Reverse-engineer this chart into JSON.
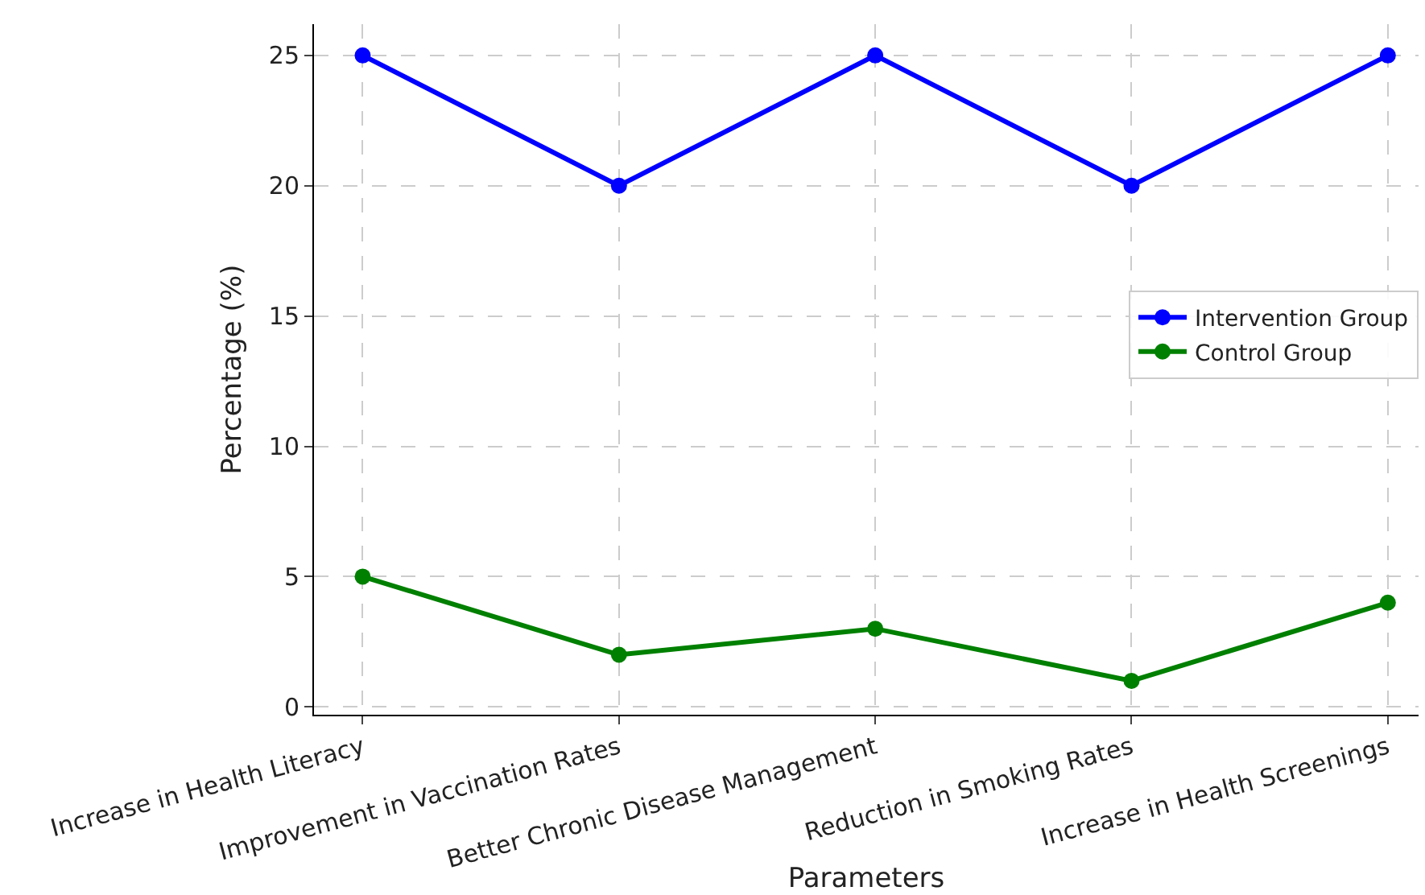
{
  "chart_data": {
    "type": "line",
    "xlabel": "Parameters",
    "ylabel": "Percentage (%)",
    "categories": [
      "Increase in Health Literacy",
      "Improvement in Vaccination Rates",
      "Better Chronic Disease Management",
      "Reduction in Smoking Rates",
      "Increase in Health Screenings"
    ],
    "series": [
      {
        "name": "Intervention Group",
        "color": "#0000ff",
        "values": [
          25,
          20,
          25,
          20,
          25
        ]
      },
      {
        "name": "Control Group",
        "color": "#008000",
        "values": [
          5,
          2,
          3,
          1,
          4
        ]
      }
    ],
    "ylim": [
      -0.3,
      26.2
    ],
    "yticks": [
      0,
      5,
      10,
      15,
      20,
      25
    ],
    "grid": true,
    "legend": "right",
    "marker": "circle",
    "line_style": "solid"
  }
}
